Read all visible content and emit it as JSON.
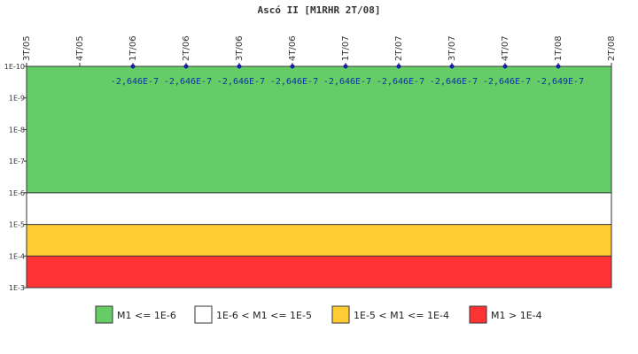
{
  "chart_data": {
    "type": "line",
    "title": "Ascó II [M1RHR 2T/08]",
    "categories": [
      "3T/05",
      "4T/05",
      "1T/06",
      "2T/06",
      "3T/06",
      "4T/06",
      "1T/07",
      "2T/07",
      "3T/07",
      "4T/07",
      "1T/08",
      "2T/08"
    ],
    "y_scale": "log",
    "y_inverted": true,
    "y_range": [
      1e-10,
      0.001
    ],
    "y_tick_labels": [
      "1E-10",
      "1E-9",
      "1E-8",
      "1E-7",
      "1E-6",
      "1E-5",
      "1E-4",
      "1E-3"
    ],
    "series": [
      {
        "color": "#1a1aaa",
        "points": [
          {
            "category": "1T/06",
            "label": "-2,646E-7"
          },
          {
            "category": "2T/06",
            "label": "-2,646E-7"
          },
          {
            "category": "3T/06",
            "label": "-2,646E-7"
          },
          {
            "category": "4T/06",
            "label": "-2,646E-7"
          },
          {
            "category": "1T/07",
            "label": "-2,646E-7"
          },
          {
            "category": "2T/07",
            "label": "-2,646E-7"
          },
          {
            "category": "3T/07",
            "label": "-2,646E-7"
          },
          {
            "category": "4T/07",
            "label": "-2,646E-7"
          },
          {
            "category": "1T/08",
            "label": "-2,649E-7"
          }
        ]
      }
    ],
    "bands": [
      {
        "from": 1e-10,
        "to": 1e-06,
        "color": "#66cc66",
        "legend": "M1 <= 1E-6"
      },
      {
        "from": 1e-06,
        "to": 1e-05,
        "color": "#ffffff",
        "legend": "1E-6 < M1 <= 1E-5"
      },
      {
        "from": 1e-05,
        "to": 0.0001,
        "color": "#ffcc33",
        "legend": "1E-5 < M1 <= 1E-4"
      },
      {
        "from": 0.0001,
        "to": 0.001,
        "color": "#ff3333",
        "legend": "M1 > 1E-4"
      }
    ],
    "legend_position": "bottom"
  }
}
